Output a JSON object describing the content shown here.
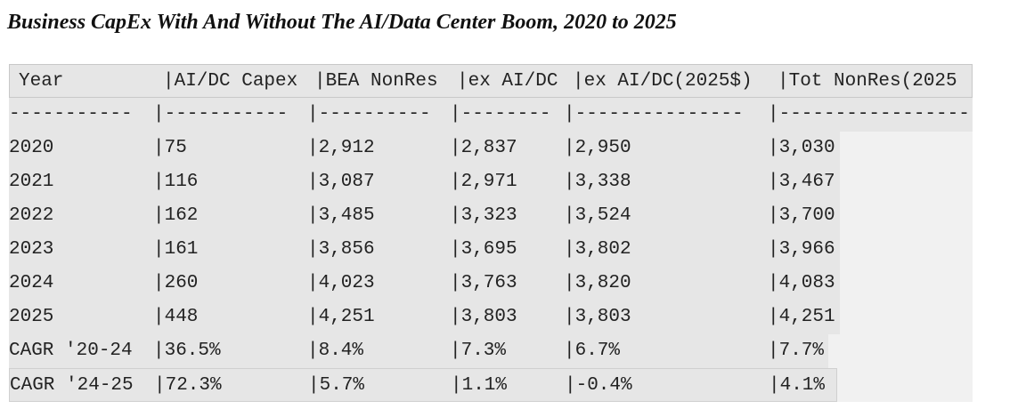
{
  "header": {
    "title": "Business CapEx With And Without The AI/Data Center Boom, 2020 to 2025"
  },
  "table": {
    "columns": [
      "Year",
      "|AI/DC Capex",
      "|BEA NonRes",
      "|ex AI/DC",
      "|ex AI/DC(2025$)",
      "|Tot NonRes(2025"
    ],
    "separator": [
      "-----------",
      "|-----------",
      "|----------",
      "|--------",
      "|---------------",
      "|------------------"
    ],
    "rows": [
      [
        "2020",
        "|75",
        "|2,912",
        "|2,837",
        "|2,950",
        "|3,030"
      ],
      [
        "2021",
        "|116",
        "|3,087",
        "|2,971",
        "|3,338",
        "|3,467"
      ],
      [
        "2022",
        "|162",
        "|3,485",
        "|3,323",
        "|3,524",
        "|3,700"
      ],
      [
        "2023",
        "|161",
        "|3,856",
        "|3,695",
        "|3,802",
        "|3,966"
      ],
      [
        "2024",
        "|260",
        "|4,023",
        "|3,763",
        "|3,820",
        "|4,083"
      ],
      [
        "2025",
        "|448",
        "|4,251",
        "|3,803",
        "|3,803",
        "|4,251"
      ],
      [
        "CAGR '20-24",
        "|36.5%",
        "|8.4%",
        "|7.3%",
        "|6.7%",
        "|7.7%"
      ],
      [
        "CAGR '24-25",
        "|72.3%",
        "|5.7%",
        "|1.1%",
        "|-0.4%",
        "|4.1%"
      ]
    ]
  }
}
